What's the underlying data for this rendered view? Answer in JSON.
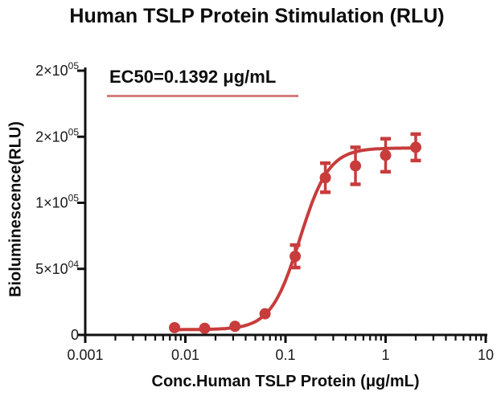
{
  "title": "Human TSLP Protein Stimulation (RLU)",
  "annotation": {
    "ec50_label": "EC50=0.1392 μg/mL"
  },
  "colors": {
    "curve": "#c83c3c",
    "annotation_line": "#d47d7a",
    "axis": "#111111",
    "text": "#1a1a1a"
  },
  "chart_data": {
    "type": "line",
    "title": "Human TSLP Protein Stimulation (RLU)",
    "xlabel": "Conc.Human TSLP Protein (μg/mL)",
    "ylabel": "Bioluminescence(RLU)",
    "x_scale": "log",
    "xlim": [
      0.001,
      10
    ],
    "ylim": [
      0,
      200000
    ],
    "grid": false,
    "legend": null,
    "ec50": 0.1392,
    "x_ticks": [
      {
        "value": 0.001,
        "label": "0.001"
      },
      {
        "value": 0.01,
        "label": "0.01"
      },
      {
        "value": 0.1,
        "label": "0.1"
      },
      {
        "value": 1,
        "label": "1"
      },
      {
        "value": 10,
        "label": "10"
      }
    ],
    "y_ticks": [
      {
        "value": 0,
        "base": "0",
        "sup": ""
      },
      {
        "value": 50000,
        "base": "5×10",
        "sup": "04"
      },
      {
        "value": 100000,
        "base": "1×10",
        "sup": "05"
      },
      {
        "value": 150000,
        "base": "2×10",
        "sup": "05"
      },
      {
        "value": 200000,
        "base": "2×10",
        "sup": "05"
      }
    ],
    "series": [
      {
        "name": "Human TSLP Protein",
        "color": "#c83c3c",
        "points": [
          {
            "x": 0.0078,
            "y": 5500,
            "err": 0
          },
          {
            "x": 0.0156,
            "y": 5000,
            "err": 0
          },
          {
            "x": 0.0313,
            "y": 6500,
            "err": 0
          },
          {
            "x": 0.0625,
            "y": 16000,
            "err": 0
          },
          {
            "x": 0.125,
            "y": 59500,
            "err": 8500
          },
          {
            "x": 0.25,
            "y": 119000,
            "err": 11000
          },
          {
            "x": 0.5,
            "y": 128000,
            "err": 14000
          },
          {
            "x": 1,
            "y": 136000,
            "err": 12500
          },
          {
            "x": 2,
            "y": 142000,
            "err": 10000
          }
        ],
        "fit": {
          "bottom": 4000,
          "top": 141500,
          "ec50": 0.1392,
          "hill": 3.0
        }
      }
    ]
  }
}
